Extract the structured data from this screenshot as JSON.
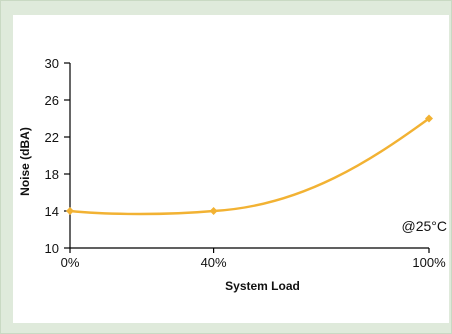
{
  "chart_data": {
    "type": "line",
    "title": "",
    "xlabel": "System Load",
    "ylabel": "Noise (dBA)",
    "x_ticks": [
      "0%",
      "40%",
      "100%"
    ],
    "y_ticks": [
      "10",
      "14",
      "18",
      "22",
      "26",
      "30"
    ],
    "xlim": [
      0,
      100
    ],
    "ylim": [
      10,
      30
    ],
    "grid": false,
    "annotation": "@25°C",
    "series": [
      {
        "color": "#f2b233",
        "x": [
          0,
          40,
          100
        ],
        "y": [
          14,
          14,
          24
        ]
      }
    ]
  }
}
